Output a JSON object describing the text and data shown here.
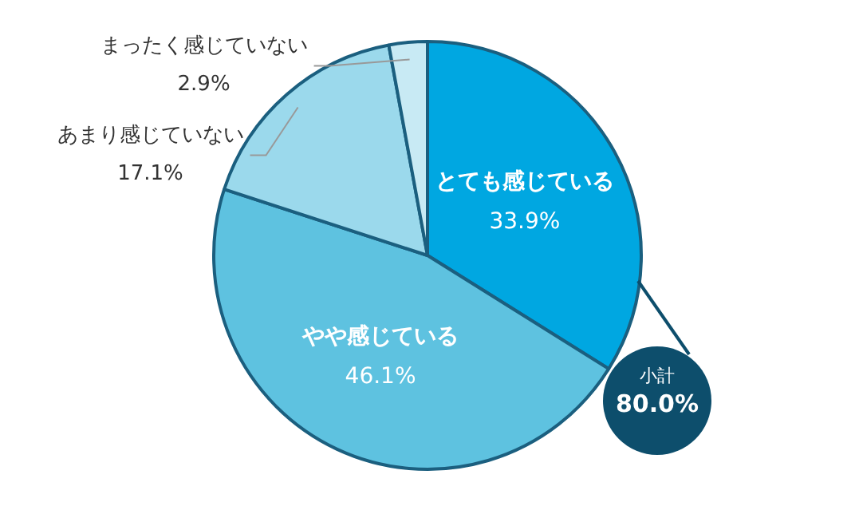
{
  "chart_data": {
    "type": "pie",
    "categories": [
      "とても感じている",
      "やや感じている",
      "あまり感じていない",
      "まったく感じていない"
    ],
    "values": [
      33.9,
      46.1,
      17.1,
      2.9
    ],
    "colors": [
      "#00a7e1",
      "#5ec2e0",
      "#9bd9ec",
      "#c8eaf4"
    ],
    "value_labels": [
      "33.9%",
      "46.1%",
      "17.1%",
      "2.9%"
    ],
    "annotations": [
      "小計",
      "80.0%"
    ]
  }
}
